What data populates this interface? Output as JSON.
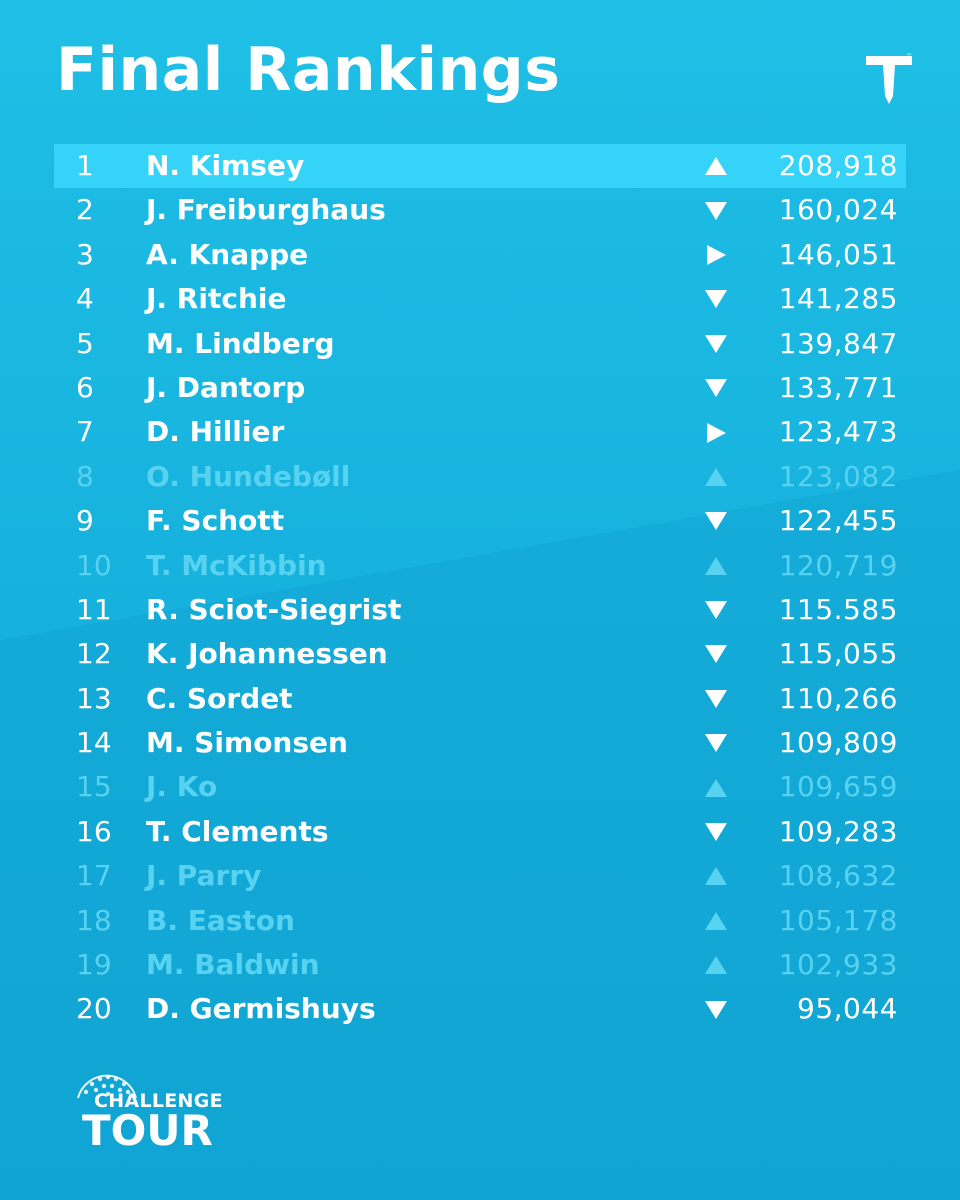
{
  "header": {
    "title": "Final Rankings",
    "logo_icon": "tee-icon"
  },
  "colors": {
    "background": "#17b3de",
    "highlight_row": "#34d3f7",
    "faded_text": "#57d2f1",
    "text": "#ffffff"
  },
  "rankings": [
    {
      "pos": "1",
      "name": "N. Kimsey",
      "trend": "up",
      "points": "208,918",
      "highlight": true,
      "faded": false
    },
    {
      "pos": "2",
      "name": "J. Freiburghaus",
      "trend": "down",
      "points": "160,024",
      "highlight": false,
      "faded": false
    },
    {
      "pos": "3",
      "name": "A. Knappe",
      "trend": "same",
      "points": "146,051",
      "highlight": false,
      "faded": false
    },
    {
      "pos": "4",
      "name": "J. Ritchie",
      "trend": "down",
      "points": "141,285",
      "highlight": false,
      "faded": false
    },
    {
      "pos": "5",
      "name": "M. Lindberg",
      "trend": "down",
      "points": "139,847",
      "highlight": false,
      "faded": false
    },
    {
      "pos": "6",
      "name": "J. Dantorp",
      "trend": "down",
      "points": "133,771",
      "highlight": false,
      "faded": false
    },
    {
      "pos": "7",
      "name": "D. Hillier",
      "trend": "same",
      "points": "123,473",
      "highlight": false,
      "faded": false
    },
    {
      "pos": "8",
      "name": "O. Hundebøll",
      "trend": "up",
      "points": "123,082",
      "highlight": false,
      "faded": true
    },
    {
      "pos": "9",
      "name": "F. Schott",
      "trend": "down",
      "points": "122,455",
      "highlight": false,
      "faded": false
    },
    {
      "pos": "10",
      "name": "T. McKibbin",
      "trend": "up",
      "points": "120,719",
      "highlight": false,
      "faded": true
    },
    {
      "pos": "11",
      "name": "R. Sciot-Siegrist",
      "trend": "down",
      "points": "115.585",
      "highlight": false,
      "faded": false
    },
    {
      "pos": "12",
      "name": "K. Johannessen",
      "trend": "down",
      "points": "115,055",
      "highlight": false,
      "faded": false
    },
    {
      "pos": "13",
      "name": "C. Sordet",
      "trend": "down",
      "points": "110,266",
      "highlight": false,
      "faded": false
    },
    {
      "pos": "14",
      "name": "M. Simonsen",
      "trend": "down",
      "points": "109,809",
      "highlight": false,
      "faded": false
    },
    {
      "pos": "15",
      "name": "J. Ko",
      "trend": "up",
      "points": "109,659",
      "highlight": false,
      "faded": true
    },
    {
      "pos": "16",
      "name": "T. Clements",
      "trend": "down",
      "points": "109,283",
      "highlight": false,
      "faded": false
    },
    {
      "pos": "17",
      "name": "J. Parry",
      "trend": "up",
      "points": "108,632",
      "highlight": false,
      "faded": true
    },
    {
      "pos": "18",
      "name": "B. Easton",
      "trend": "up",
      "points": "105,178",
      "highlight": false,
      "faded": true
    },
    {
      "pos": "19",
      "name": "M. Baldwin",
      "trend": "up",
      "points": "102,933",
      "highlight": false,
      "faded": true
    },
    {
      "pos": "20",
      "name": "D. Germishuys",
      "trend": "down",
      "points": "95,044",
      "highlight": false,
      "faded": false
    }
  ],
  "footer": {
    "brand_line1": "CHALLENGE",
    "brand_line2": "TOUR",
    "brand_icon": "golf-ball-icon"
  }
}
